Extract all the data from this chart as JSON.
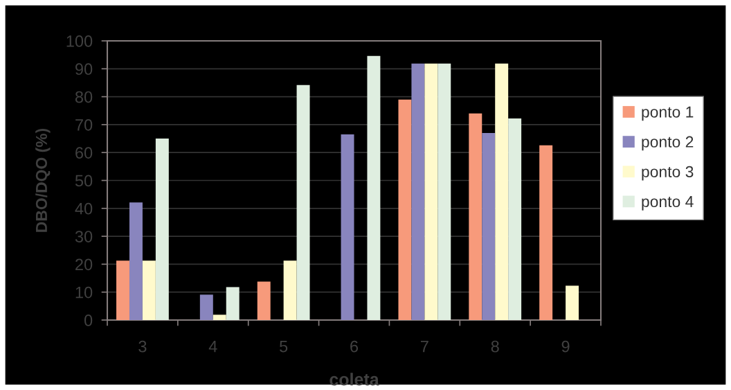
{
  "chart_data": {
    "type": "bar",
    "xlabel": "coleta",
    "ylabel": "DBO/DQO (%)",
    "categories": [
      "3",
      "4",
      "5",
      "6",
      "7",
      "8",
      "9"
    ],
    "series": [
      {
        "name": "ponto 1",
        "color": "#f79a7b",
        "values": [
          21.3,
          null,
          13.8,
          null,
          79.0,
          74.0,
          62.6
        ]
      },
      {
        "name": "ponto 2",
        "color": "#8985be",
        "values": [
          42.1,
          9.1,
          null,
          66.5,
          91.9,
          67.0,
          null
        ]
      },
      {
        "name": "ponto 3",
        "color": "#fffacc",
        "values": [
          21.3,
          1.9,
          21.3,
          null,
          91.9,
          91.9,
          12.3
        ]
      },
      {
        "name": "ponto 4",
        "color": "#dfeee0",
        "values": [
          65.0,
          11.8,
          84.2,
          94.6,
          91.9,
          72.2,
          null
        ]
      }
    ],
    "ylim": [
      0,
      100
    ],
    "yticks": [
      0,
      10,
      20,
      30,
      40,
      50,
      60,
      70,
      80,
      90,
      100
    ],
    "grid": "y",
    "legend": "right"
  }
}
